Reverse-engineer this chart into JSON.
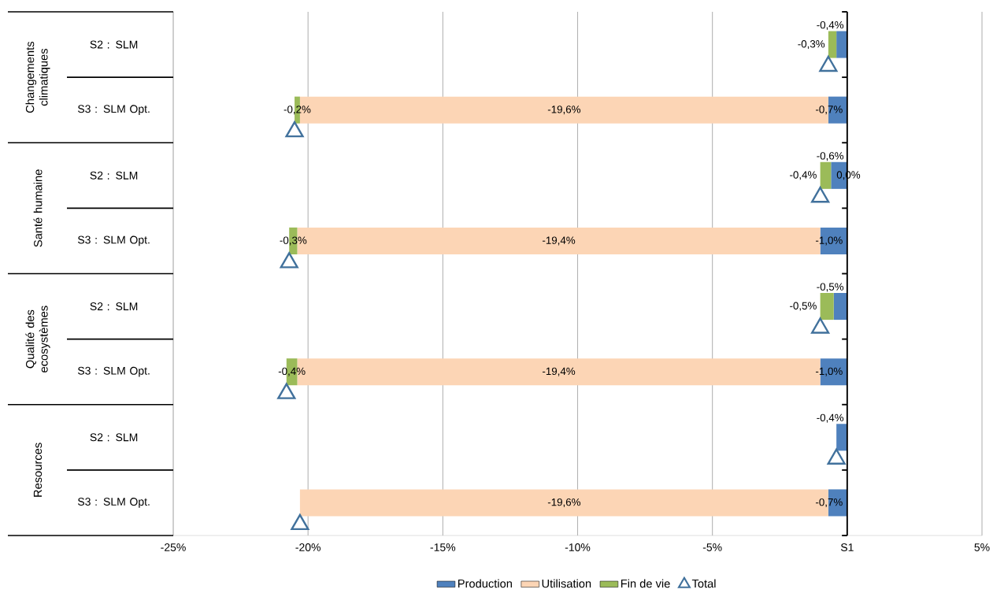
{
  "chart_data": {
    "type": "bar",
    "orientation": "horizontal",
    "stacked": true,
    "categories": [
      "S2 : SLM",
      "S3 : SLM Opt.",
      "S2 : SLM",
      "S3 : SLM Opt.",
      "S2 : SLM",
      "S3 : SLM Opt.",
      "S2 : SLM",
      "S3 : SLM Opt."
    ],
    "series": [
      {
        "name": "Production",
        "color": "#4f81bd",
        "values": [
          -0.4,
          -0.7,
          -0.6,
          -1.0,
          -0.5,
          -1.0,
          -0.4,
          -0.7
        ],
        "value_labels": [
          "-0,4%",
          "-0,7%",
          "-0,6%",
          "-1,0%",
          "-0,5%",
          "-1,0%",
          "-0,4%",
          "-0,7%"
        ]
      },
      {
        "name": "Utilisation",
        "color": "#fcd5b5",
        "values": [
          null,
          -19.6,
          0.0,
          -19.4,
          null,
          -19.4,
          null,
          -19.6
        ],
        "value_labels": [
          null,
          "-19,6%",
          "0,0%",
          "-19,4%",
          null,
          "-19,4%",
          null,
          "-19,6%"
        ]
      },
      {
        "name": "Fin de vie",
        "color": "#9bbb59",
        "values": [
          -0.3,
          -0.2,
          -0.4,
          -0.3,
          -0.5,
          -0.4,
          null,
          null
        ],
        "value_labels": [
          "-0,3%",
          "-0,2%",
          "-0,4%",
          "-0,3%",
          "-0,5%",
          "-0,4%",
          null,
          null
        ]
      },
      {
        "name": "Total",
        "type": "scatter",
        "marker": "triangle",
        "color": "#41719c",
        "values": [
          -0.7,
          -20.5,
          -1.0,
          -20.7,
          -1.0,
          -20.8,
          -0.4,
          -20.3
        ]
      }
    ],
    "xlim": [
      -25,
      5
    ],
    "xticks": [
      {
        "value": -25,
        "label": "-25%"
      },
      {
        "value": -20,
        "label": "-20%"
      },
      {
        "value": -15,
        "label": "-15%"
      },
      {
        "value": -10,
        "label": "-10%"
      },
      {
        "value": -5,
        "label": "-5%"
      },
      {
        "value": 0,
        "label": "S1"
      },
      {
        "value": 5,
        "label": "5%"
      }
    ],
    "annotations": [
      "Changements climatiques",
      "Santé humaine",
      "Qualité des ecosystèmes",
      "Resources"
    ],
    "grid": "x",
    "legend": "bottom"
  }
}
